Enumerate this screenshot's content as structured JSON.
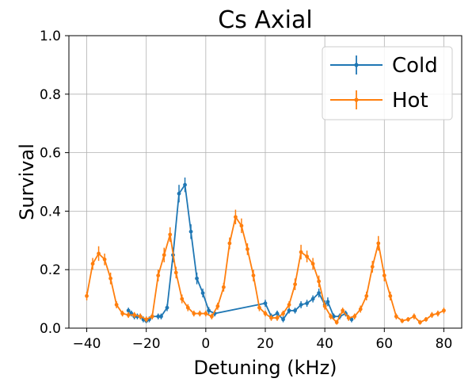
{
  "chart_data": {
    "type": "line",
    "title": "Cs Axial",
    "xlabel": "Detuning (kHz)",
    "ylabel": "Survival",
    "xlim": [
      -46,
      86
    ],
    "ylim": [
      0.0,
      1.0
    ],
    "xticks": [
      -40,
      -20,
      0,
      20,
      40,
      60,
      80
    ],
    "yticks": [
      0.0,
      0.2,
      0.4,
      0.6,
      0.8,
      1.0
    ],
    "grid": true,
    "legend_position": "top-right",
    "series": [
      {
        "name": "Cold",
        "color": "#1f77b4",
        "points": [
          [
            -26,
            0.06,
            0.01
          ],
          [
            -25,
            0.05,
            0.01
          ],
          [
            -24,
            0.04,
            0.01
          ],
          [
            -23,
            0.04,
            0.01
          ],
          [
            -22,
            0.04,
            0.01
          ],
          [
            -21,
            0.03,
            0.01
          ],
          [
            -20,
            0.025,
            0.008
          ],
          [
            -19,
            0.03,
            0.01
          ],
          [
            -18,
            0.04,
            0.01
          ],
          [
            -16,
            0.04,
            0.01
          ],
          [
            -15,
            0.04,
            0.01
          ],
          [
            -13,
            0.07,
            0.012
          ],
          [
            -11,
            0.25,
            0.025
          ],
          [
            -9,
            0.46,
            0.03
          ],
          [
            -7,
            0.49,
            0.025
          ],
          [
            -5,
            0.33,
            0.025
          ],
          [
            -3,
            0.17,
            0.02
          ],
          [
            -1,
            0.12,
            0.015
          ],
          [
            1,
            0.06,
            0.012
          ],
          [
            3,
            0.05,
            0.01
          ],
          [
            20,
            0.085,
            0.012
          ],
          [
            22,
            0.04,
            0.01
          ],
          [
            24,
            0.05,
            0.01
          ],
          [
            26,
            0.03,
            0.01
          ],
          [
            28,
            0.06,
            0.01
          ],
          [
            30,
            0.06,
            0.01
          ],
          [
            32,
            0.08,
            0.012
          ],
          [
            34,
            0.085,
            0.012
          ],
          [
            36,
            0.1,
            0.012
          ],
          [
            38,
            0.12,
            0.015
          ],
          [
            40,
            0.08,
            0.015
          ],
          [
            41,
            0.09,
            0.015
          ],
          [
            43,
            0.04,
            0.01
          ],
          [
            45,
            0.04,
            0.01
          ],
          [
            47,
            0.05,
            0.01
          ],
          [
            49,
            0.03,
            0.01
          ]
        ]
      },
      {
        "name": "Hot",
        "color": "#ff7f0e",
        "points": [
          [
            -40,
            0.11,
            0.015
          ],
          [
            -38,
            0.22,
            0.02
          ],
          [
            -36,
            0.255,
            0.025
          ],
          [
            -34,
            0.235,
            0.02
          ],
          [
            -32,
            0.17,
            0.02
          ],
          [
            -30,
            0.08,
            0.012
          ],
          [
            -28,
            0.05,
            0.01
          ],
          [
            -26,
            0.045,
            0.01
          ],
          [
            -24,
            0.045,
            0.01
          ],
          [
            -22,
            0.04,
            0.01
          ],
          [
            -20,
            0.03,
            0.01
          ],
          [
            -18,
            0.04,
            0.01
          ],
          [
            -16,
            0.18,
            0.02
          ],
          [
            -14,
            0.25,
            0.025
          ],
          [
            -12,
            0.32,
            0.025
          ],
          [
            -10,
            0.19,
            0.02
          ],
          [
            -8,
            0.1,
            0.015
          ],
          [
            -6,
            0.07,
            0.012
          ],
          [
            -4,
            0.05,
            0.01
          ],
          [
            -2,
            0.05,
            0.01
          ],
          [
            0,
            0.05,
            0.01
          ],
          [
            2,
            0.04,
            0.01
          ],
          [
            4,
            0.075,
            0.012
          ],
          [
            6,
            0.14,
            0.015
          ],
          [
            8,
            0.29,
            0.02
          ],
          [
            10,
            0.38,
            0.025
          ],
          [
            12,
            0.35,
            0.025
          ],
          [
            14,
            0.27,
            0.02
          ],
          [
            16,
            0.18,
            0.02
          ],
          [
            18,
            0.07,
            0.012
          ],
          [
            20,
            0.05,
            0.01
          ],
          [
            22,
            0.035,
            0.01
          ],
          [
            24,
            0.035,
            0.01
          ],
          [
            26,
            0.05,
            0.01
          ],
          [
            28,
            0.08,
            0.012
          ],
          [
            30,
            0.15,
            0.02
          ],
          [
            32,
            0.26,
            0.025
          ],
          [
            34,
            0.245,
            0.02
          ],
          [
            36,
            0.22,
            0.02
          ],
          [
            38,
            0.16,
            0.02
          ],
          [
            40,
            0.075,
            0.012
          ],
          [
            42,
            0.04,
            0.01
          ],
          [
            44,
            0.02,
            0.008
          ],
          [
            46,
            0.06,
            0.01
          ],
          [
            48,
            0.035,
            0.01
          ],
          [
            50,
            0.04,
            0.01
          ],
          [
            52,
            0.065,
            0.012
          ],
          [
            54,
            0.11,
            0.015
          ],
          [
            56,
            0.21,
            0.02
          ],
          [
            58,
            0.29,
            0.025
          ],
          [
            60,
            0.18,
            0.02
          ],
          [
            62,
            0.11,
            0.015
          ],
          [
            64,
            0.04,
            0.01
          ],
          [
            66,
            0.025,
            0.008
          ],
          [
            68,
            0.03,
            0.008
          ],
          [
            70,
            0.04,
            0.01
          ],
          [
            72,
            0.02,
            0.008
          ],
          [
            74,
            0.03,
            0.008
          ],
          [
            76,
            0.045,
            0.01
          ],
          [
            78,
            0.05,
            0.01
          ],
          [
            80,
            0.06,
            0.01
          ]
        ]
      }
    ]
  }
}
